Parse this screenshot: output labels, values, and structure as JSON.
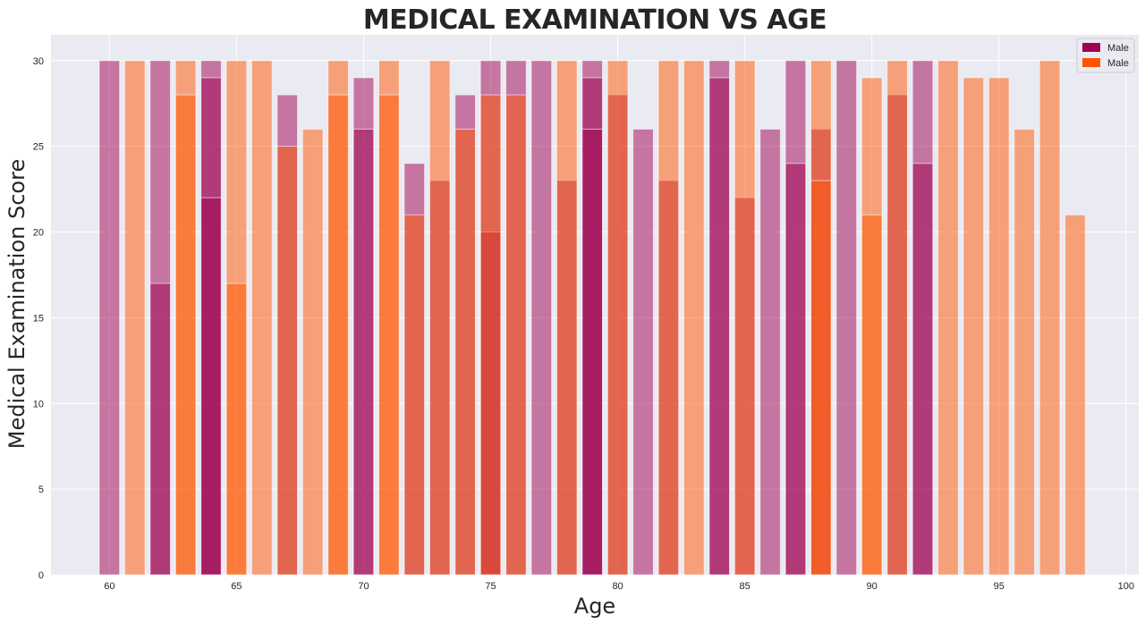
{
  "chart_data": {
    "type": "bar",
    "title": "MEDICAL EXAMINATION VS AGE",
    "xlabel": "Age",
    "ylabel": "Medical Examination Score",
    "xlim": [
      57.7,
      100.5
    ],
    "ylim": [
      0,
      31.5
    ],
    "xticks": [
      60,
      65,
      70,
      75,
      80,
      85,
      90,
      95,
      100
    ],
    "yticks": [
      0,
      5,
      10,
      15,
      20,
      25,
      30
    ],
    "grid": true,
    "legend_position": "top-right",
    "colors": {
      "background": "#eaeaf2",
      "male_1": "#9e0050",
      "male_2": "#ff5500"
    },
    "series": [
      {
        "name": "Male",
        "color": "#9e0050",
        "x": [
          60,
          62,
          62,
          64,
          64,
          64,
          67,
          70,
          70,
          72,
          73,
          74,
          75,
          75,
          76,
          77,
          78,
          79,
          79,
          79,
          80,
          81,
          82,
          84,
          84,
          85,
          86,
          87,
          87,
          88,
          89,
          91,
          92,
          92
        ],
        "values": [
          30,
          30,
          17,
          30,
          29,
          22,
          28,
          29,
          26,
          24,
          23,
          28,
          30,
          20,
          30,
          30,
          23,
          30,
          29,
          26,
          28,
          26,
          23,
          30,
          29,
          22,
          26,
          30,
          24,
          26,
          30,
          28,
          30,
          24
        ]
      },
      {
        "name": "Male",
        "color": "#ff5500",
        "x": [
          61,
          63,
          63,
          65,
          65,
          66,
          67,
          68,
          69,
          69,
          71,
          71,
          72,
          73,
          74,
          75,
          76,
          78,
          80,
          82,
          83,
          85,
          88,
          88,
          90,
          90,
          91,
          93,
          94,
          95,
          96,
          97,
          98
        ],
        "values": [
          30,
          30,
          28,
          30,
          17,
          30,
          25,
          26,
          30,
          28,
          30,
          28,
          21,
          30,
          26,
          28,
          28,
          30,
          30,
          30,
          30,
          30,
          30,
          23,
          29,
          21,
          30,
          30,
          29,
          29,
          26,
          30,
          21
        ]
      }
    ]
  }
}
